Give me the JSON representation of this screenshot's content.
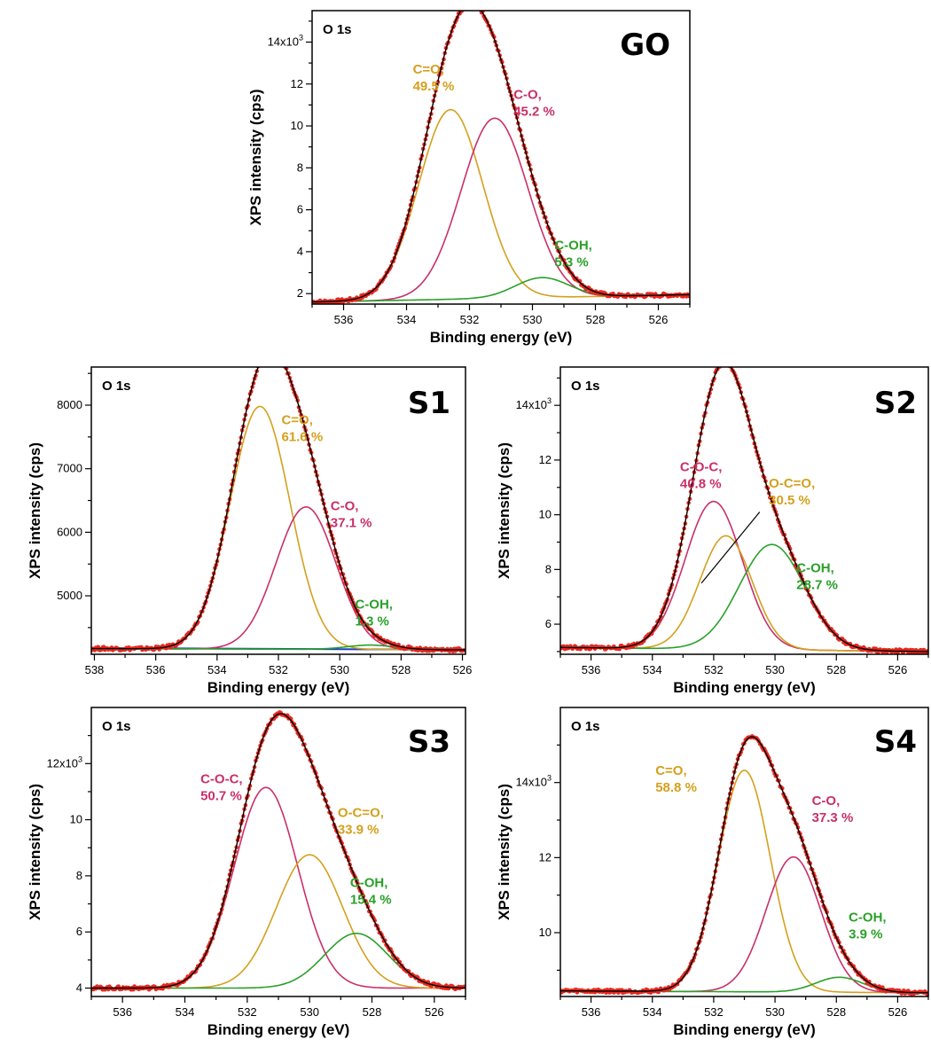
{
  "chart_data": [
    {
      "type": "line",
      "panel_title": "O 1s",
      "sample_label": "GO",
      "xlabel": "Binding energy (eV)",
      "ylabel": "XPS intensity (cps)",
      "xlim": [
        537,
        525
      ],
      "ylim": [
        1.5,
        15.5
      ],
      "xticks": [
        536,
        534,
        532,
        530,
        528,
        526
      ],
      "xtick_labels": [
        "536",
        "534",
        "532",
        "530",
        "528",
        "526"
      ],
      "yticks": [
        2,
        4,
        6,
        8,
        10,
        12,
        14
      ],
      "ytick_labels": [
        "2",
        "4",
        "6",
        "8",
        "10",
        "12",
        "14x10³"
      ],
      "background": [
        {
          "x": 537,
          "y": 1.6
        },
        {
          "x": 525,
          "y": 1.95
        }
      ],
      "components": [
        {
          "name": "C=O",
          "percent": "49.5 %",
          "color": "#d4a01e",
          "center": 532.6,
          "fwhm": 2.4,
          "height": 9.05
        },
        {
          "name": "C-O",
          "percent": "45.2 %",
          "color": "#c8306a",
          "center": 531.2,
          "fwhm": 2.5,
          "height": 8.6
        },
        {
          "name": "C-OH",
          "percent": "5.3 %",
          "color": "#2aa02a",
          "center": 529.7,
          "fwhm": 2.0,
          "height": 0.95
        }
      ],
      "annotations": [
        {
          "text": "C=O,",
          "text2": "49.5 %",
          "color": "#d4a01e",
          "x": 533.8,
          "y": 12.5
        },
        {
          "text": "C-O,",
          "text2": "45.2 %",
          "color": "#c8306a",
          "x": 530.6,
          "y": 11.3
        },
        {
          "text": "C-OH,",
          "text2": "5.3 %",
          "color": "#2aa02a",
          "x": 529.3,
          "y": 4.1
        }
      ]
    },
    {
      "type": "line",
      "panel_title": "O 1s",
      "sample_label": "S1",
      "xlabel": "Binding energy (eV)",
      "ylabel": "XPS intensity (cps)",
      "xlim": [
        538.1,
        525.9
      ],
      "ylim": [
        4080,
        8600
      ],
      "xticks": [
        538,
        536,
        534,
        532,
        530,
        528,
        526
      ],
      "xtick_labels": [
        "538",
        "536",
        "534",
        "532",
        "530",
        "528",
        "526"
      ],
      "yticks": [
        5000,
        6000,
        7000,
        8000
      ],
      "ytick_labels": [
        "5000",
        "6000",
        "7000",
        "8000"
      ],
      "background": [
        {
          "x": 538.1,
          "y": 4170
        },
        {
          "x": 525.9,
          "y": 4150
        }
      ],
      "baseline_line": {
        "color": "#1f3fbf",
        "points": [
          {
            "x": 538.1,
            "y": 4180
          },
          {
            "x": 525.9,
            "y": 4150
          }
        ]
      },
      "components": [
        {
          "name": "C=O",
          "percent": "61.6 %",
          "color": "#d4a01e",
          "center": 532.6,
          "fwhm": 2.3,
          "height": 3820
        },
        {
          "name": "C-O",
          "percent": "37.1 %",
          "color": "#c8306a",
          "center": 531.1,
          "fwhm": 2.3,
          "height": 2240
        },
        {
          "name": "C-OH",
          "percent": "1.3 %",
          "color": "#2aa02a",
          "center": 529.0,
          "fwhm": 1.8,
          "height": 70
        }
      ],
      "annotations": [
        {
          "text": "C=O,",
          "text2": "61.6 %",
          "color": "#d4a01e",
          "x": 531.9,
          "y": 7700
        },
        {
          "text": "C-O,",
          "text2": "37.1 %",
          "color": "#c8306a",
          "x": 530.3,
          "y": 6350
        },
        {
          "text": "C-OH,",
          "text2": "1.3 %",
          "color": "#2aa02a",
          "x": 529.5,
          "y": 4800
        }
      ]
    },
    {
      "type": "line",
      "panel_title": "O 1s",
      "sample_label": "S2",
      "xlabel": "Binding energy (eV)",
      "ylabel": "XPS intensity (cps)",
      "xlim": [
        537,
        525
      ],
      "ylim": [
        4.9,
        15.4
      ],
      "xticks": [
        536,
        534,
        532,
        530,
        528,
        526
      ],
      "xtick_labels": [
        "536",
        "534",
        "532",
        "530",
        "528",
        "526"
      ],
      "yticks": [
        6,
        8,
        10,
        12,
        14
      ],
      "ytick_labels": [
        "6",
        "8",
        "10",
        "12",
        "14x10³"
      ],
      "background": [
        {
          "x": 537,
          "y": 5.15
        },
        {
          "x": 525,
          "y": 5.0
        }
      ],
      "components": [
        {
          "name": "C-O-C",
          "percent": "40.8 %",
          "color": "#c8306a",
          "center": 532.0,
          "fwhm": 2.2,
          "height": 5.4
        },
        {
          "name": "O-C=O",
          "percent": "30.5 %",
          "color": "#d4a01e",
          "center": 531.6,
          "fwhm": 2.0,
          "height": 4.15
        },
        {
          "name": "C-OH",
          "percent": "28.7 %",
          "color": "#2aa02a",
          "center": 530.1,
          "fwhm": 2.5,
          "height": 3.85
        }
      ],
      "annotations": [
        {
          "text": "C-O-C,",
          "text2": "40.8 %",
          "color": "#c8306a",
          "x": 533.1,
          "y": 11.6
        },
        {
          "text": "O-C=O,",
          "text2": "30.5 %",
          "color": "#d4a01e",
          "x": 530.2,
          "y": 11.0
        },
        {
          "text": "C-OH,",
          "text2": "28.7 %",
          "color": "#2aa02a",
          "x": 529.3,
          "y": 7.9
        }
      ],
      "leader_line": {
        "x1": 532.4,
        "y1": 7.5,
        "x2": 530.5,
        "y2": 10.1
      }
    },
    {
      "type": "line",
      "panel_title": "O 1s",
      "sample_label": "S3",
      "xlabel": "Binding energy (eV)",
      "ylabel": "XPS intensity (cps)",
      "xlim": [
        537,
        525
      ],
      "ylim": [
        3.7,
        14.0
      ],
      "xticks": [
        536,
        534,
        532,
        530,
        528,
        526
      ],
      "xtick_labels": [
        "536",
        "534",
        "532",
        "530",
        "528",
        "526"
      ],
      "yticks": [
        4,
        6,
        8,
        10,
        12
      ],
      "ytick_labels": [
        "4",
        "6",
        "8",
        "10",
        "12x10³"
      ],
      "background": [
        {
          "x": 537,
          "y": 4.0
        },
        {
          "x": 525,
          "y": 4.0
        }
      ],
      "components": [
        {
          "name": "C-O-C",
          "percent": "50.7 %",
          "color": "#c8306a",
          "center": 531.4,
          "fwhm": 2.4,
          "height": 7.15
        },
        {
          "name": "O-C=O",
          "percent": "33.9 %",
          "color": "#d4a01e",
          "center": 530.0,
          "fwhm": 2.5,
          "height": 4.75
        },
        {
          "name": "C-OH",
          "percent": "15.4 %",
          "color": "#2aa02a",
          "center": 528.5,
          "fwhm": 2.4,
          "height": 1.95
        }
      ],
      "annotations": [
        {
          "text": "C-O-C,",
          "text2": "50.7 %",
          "color": "#c8306a",
          "x": 533.5,
          "y": 11.3
        },
        {
          "text": "O-C=O,",
          "text2": "33.9 %",
          "color": "#d4a01e",
          "x": 529.1,
          "y": 10.1
        },
        {
          "text": "C-OH,",
          "text2": "15.4 %",
          "color": "#2aa02a",
          "x": 528.7,
          "y": 7.6
        }
      ]
    },
    {
      "type": "line",
      "panel_title": "O 1s",
      "sample_label": "S4",
      "xlabel": "Binding energy (eV)",
      "ylabel": "XPS intensity (cps)",
      "xlim": [
        537,
        525
      ],
      "ylim": [
        8.3,
        16.0
      ],
      "xticks": [
        536,
        534,
        532,
        530,
        528,
        526
      ],
      "xtick_labels": [
        "536",
        "534",
        "532",
        "530",
        "528",
        "526"
      ],
      "yticks": [
        10,
        12,
        14
      ],
      "ytick_labels": [
        "10",
        "12",
        "14x10³"
      ],
      "background": [
        {
          "x": 537,
          "y": 8.45
        },
        {
          "x": 525,
          "y": 8.4
        }
      ],
      "components": [
        {
          "name": "C=O",
          "percent": "58.8 %",
          "color": "#d4a01e",
          "center": 531.0,
          "fwhm": 2.0,
          "height": 5.9
        },
        {
          "name": "C-O",
          "percent": "37.3 %",
          "color": "#c8306a",
          "center": 529.4,
          "fwhm": 2.1,
          "height": 3.6
        },
        {
          "name": "C-OH",
          "percent": "3.9 %",
          "color": "#2aa02a",
          "center": 527.9,
          "fwhm": 1.8,
          "height": 0.4
        }
      ],
      "annotations": [
        {
          "text": "C=O,",
          "text2": "58.8 %",
          "color": "#d4a01e",
          "x": 533.9,
          "y": 14.2
        },
        {
          "text": "C-O,",
          "text2": "37.3 %",
          "color": "#c8306a",
          "x": 528.8,
          "y": 13.4
        },
        {
          "text": "C-OH,",
          "text2": "3.9 %",
          "color": "#2aa02a",
          "x": 527.6,
          "y": 10.3
        }
      ]
    }
  ]
}
